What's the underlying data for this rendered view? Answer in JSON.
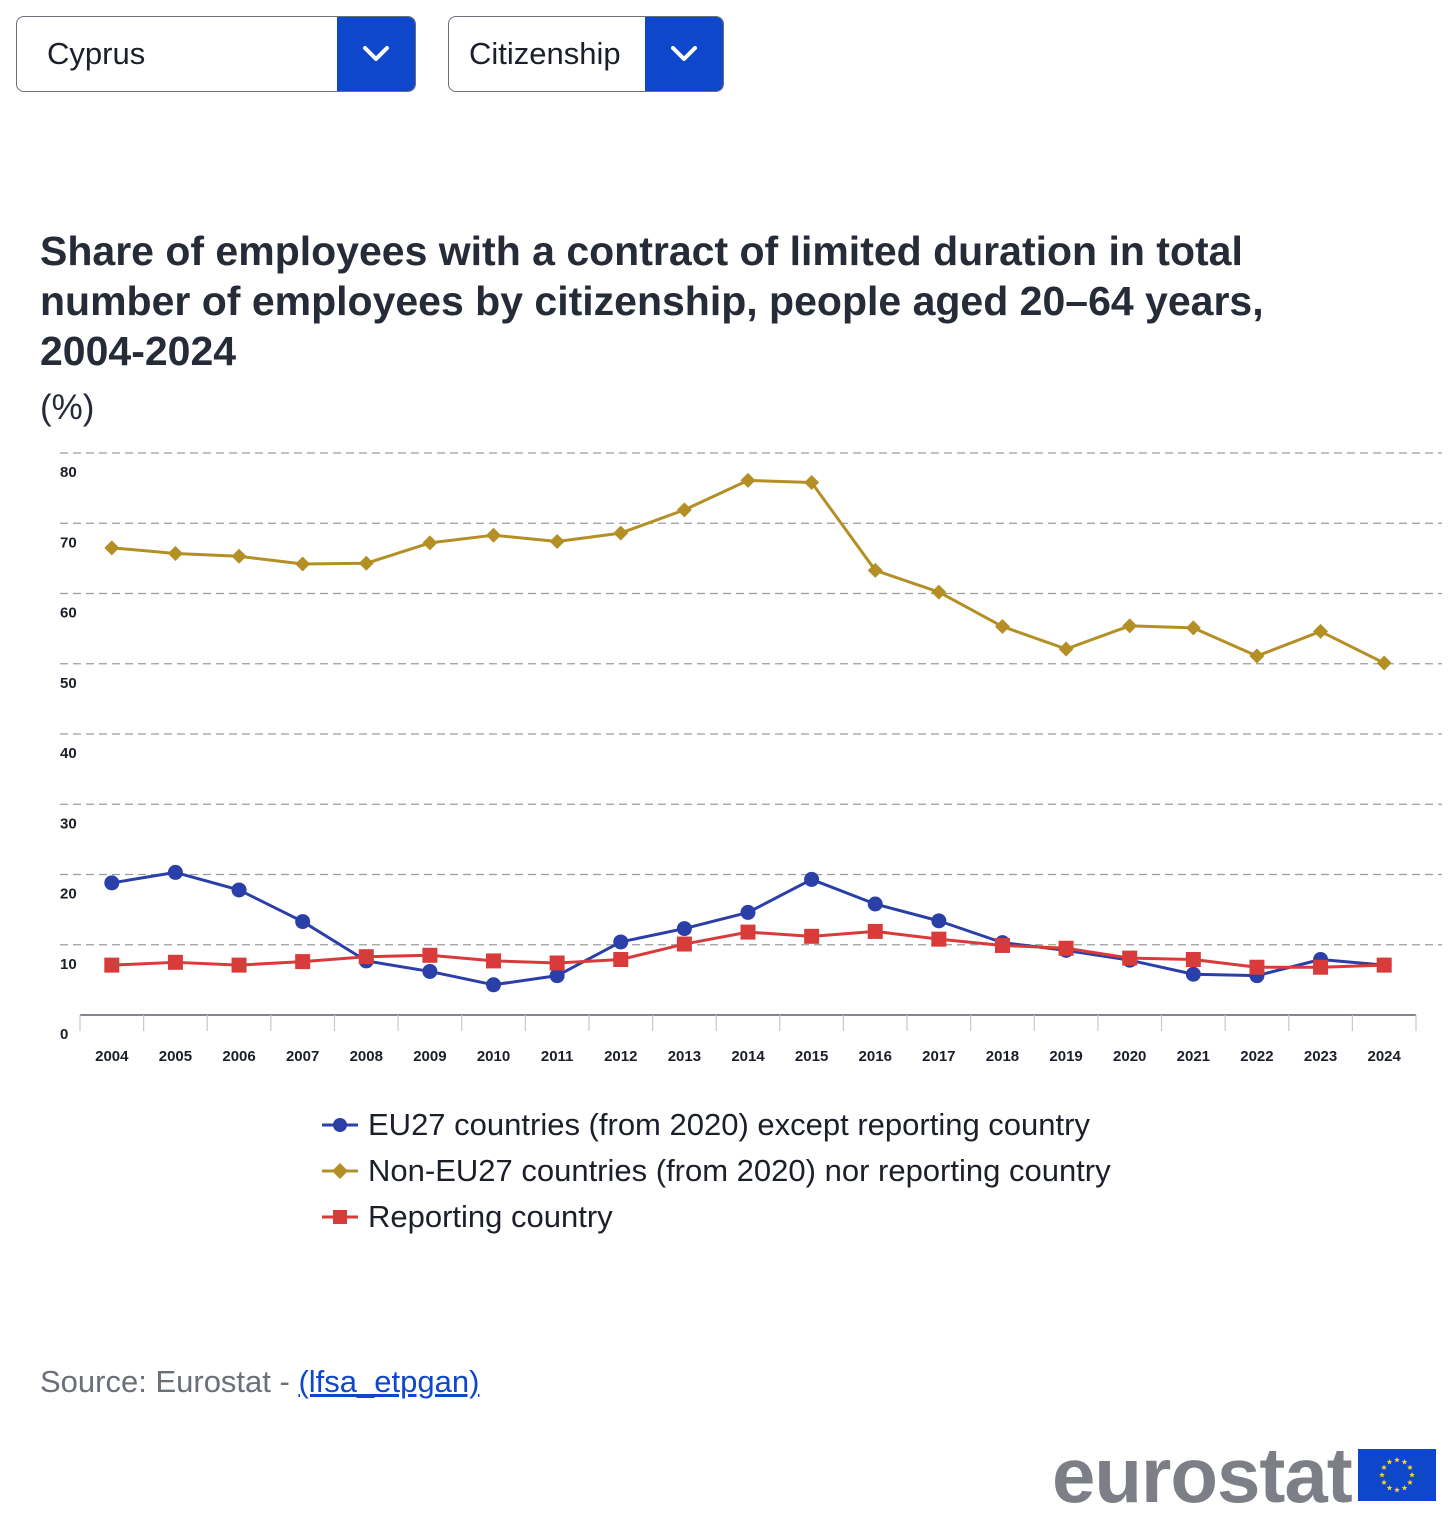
{
  "filters": {
    "country": "Cyprus",
    "breakdown": "Citizenship"
  },
  "chart_data": {
    "type": "line",
    "title": "Share of employees with a contract of limited duration in total number of employees by citizenship, people aged 20–64 years, 2004-2024",
    "unit": "(%)",
    "xlabel": "",
    "ylabel": "",
    "ylim": [
      0,
      80
    ],
    "yticks": [
      "0",
      "10",
      "20",
      "30",
      "40",
      "50",
      "60",
      "70",
      "80"
    ],
    "grid": true,
    "legend_position": "bottom",
    "categories": [
      "2004",
      "2005",
      "2006",
      "2007",
      "2008",
      "2009",
      "2010",
      "2011",
      "2012",
      "2013",
      "2014",
      "2015",
      "2016",
      "2017",
      "2018",
      "2019",
      "2020",
      "2021",
      "2022",
      "2023",
      "2024"
    ],
    "series": [
      {
        "name": "EU27 countries (from 2020) except reporting country",
        "color": "#2a3fa8",
        "marker": "circle",
        "values": [
          18.8,
          20.3,
          17.8,
          13.3,
          7.7,
          6.2,
          4.3,
          5.6,
          10.4,
          12.3,
          14.6,
          19.3,
          15.8,
          13.4,
          10.3,
          9.2,
          7.8,
          5.8,
          5.6,
          7.9,
          7.1
        ]
      },
      {
        "name": "Non-EU27 countries (from 2020) nor reporting country",
        "color": "#b38f25",
        "marker": "diamond",
        "values": [
          66.5,
          65.7,
          65.3,
          64.2,
          64.3,
          67.2,
          68.3,
          67.4,
          68.6,
          71.9,
          76.1,
          75.8,
          63.3,
          60.2,
          55.3,
          52.1,
          55.4,
          55.1,
          51.1,
          54.6,
          50.1
        ]
      },
      {
        "name": "Reporting country",
        "color": "#d93b3b",
        "marker": "square",
        "values": [
          7.1,
          7.5,
          7.1,
          7.6,
          8.3,
          8.5,
          7.7,
          7.4,
          7.9,
          10.1,
          11.8,
          11.2,
          11.9,
          10.8,
          9.9,
          9.5,
          8.1,
          7.9,
          6.8,
          6.8,
          7.1
        ]
      }
    ]
  },
  "source": {
    "prefix": "Source: Eurostat - ",
    "link": "(lfsa_etpgan)"
  },
  "logo": {
    "text": "eurostat"
  }
}
